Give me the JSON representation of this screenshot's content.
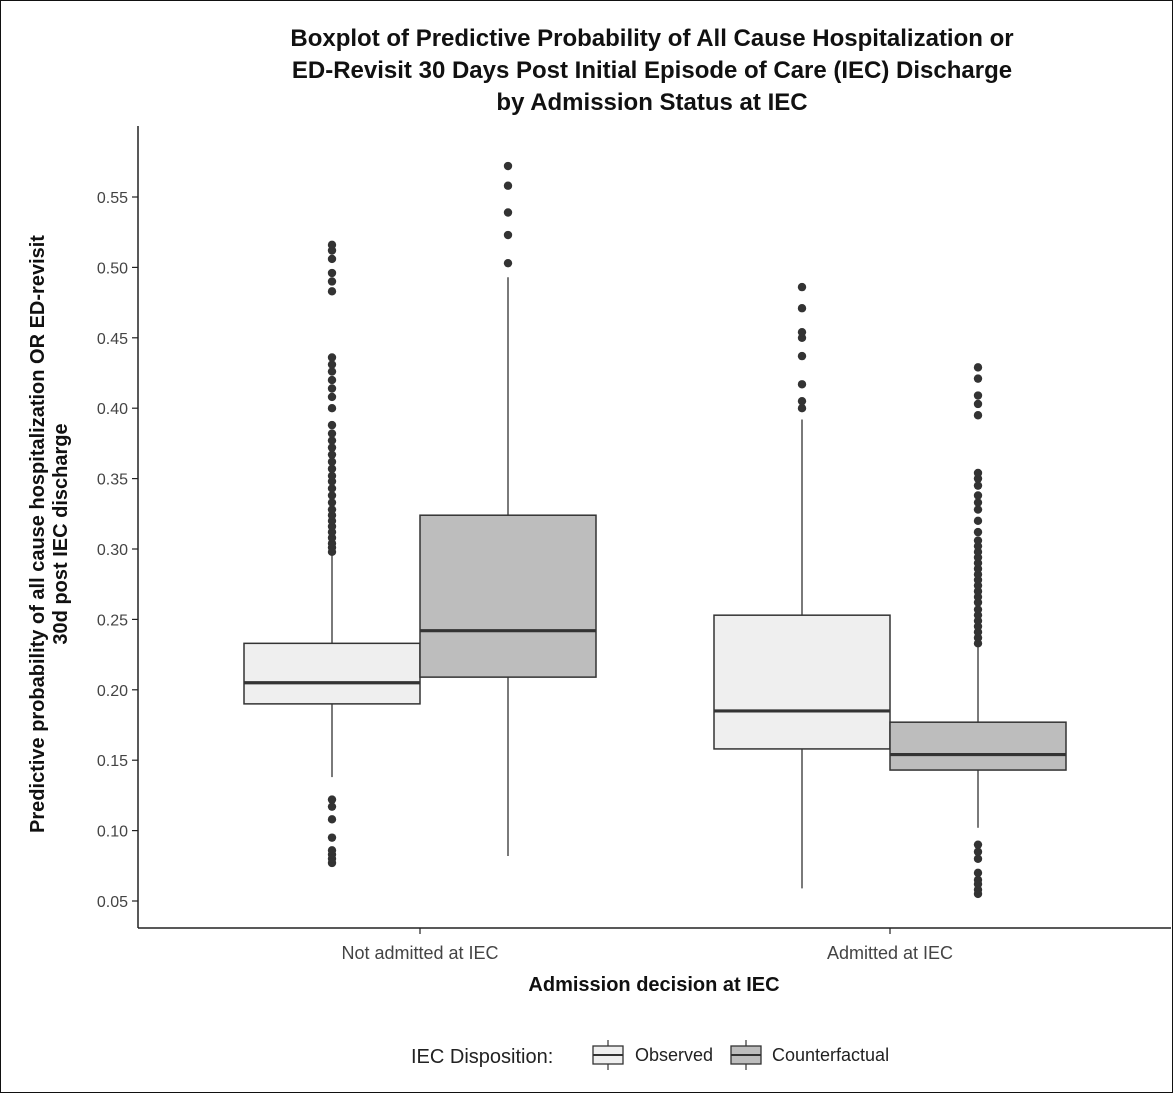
{
  "chart_data": {
    "type": "boxplot",
    "title": [
      "Boxplot of Predictive Probability of All Cause Hospitalization or",
      "ED-Revisit 30 Days Post Initial Episode of Care (IEC) Discharge",
      "by Admission Status at IEC"
    ],
    "xlabel": "Admission decision at IEC",
    "ylabel": [
      "Predictive probability of all cause hospitalization OR ED-revisit",
      "30d post IEC discharge"
    ],
    "ylim": [
      0.03,
      0.58
    ],
    "yticks": [
      0.05,
      0.1,
      0.15,
      0.2,
      0.25,
      0.3,
      0.35,
      0.4,
      0.45,
      0.5,
      0.55
    ],
    "ytick_labels": [
      "0.05",
      "0.10",
      "0.15",
      "0.20",
      "0.25",
      "0.30",
      "0.35",
      "0.40",
      "0.45",
      "0.50",
      "0.55"
    ],
    "categories": [
      "Not admitted at IEC",
      "Admitted at IEC"
    ],
    "legend": {
      "title": "IEC Disposition:",
      "position": "bottom",
      "entries": [
        {
          "name": "Observed",
          "color": "#efefef"
        },
        {
          "name": "Counterfactual",
          "color": "#bdbdbd"
        }
      ]
    },
    "series": [
      {
        "name": "Observed",
        "color": "#efefef",
        "boxes": [
          {
            "category": "Not admitted at IEC",
            "whisker_low": 0.138,
            "q1": 0.19,
            "median": 0.205,
            "q3": 0.233,
            "whisker_high": 0.297,
            "outliers": [
              0.077,
              0.08,
              0.083,
              0.086,
              0.095,
              0.108,
              0.117,
              0.122,
              0.298,
              0.301,
              0.304,
              0.308,
              0.312,
              0.316,
              0.32,
              0.324,
              0.328,
              0.333,
              0.338,
              0.343,
              0.348,
              0.352,
              0.357,
              0.362,
              0.367,
              0.372,
              0.377,
              0.382,
              0.388,
              0.4,
              0.408,
              0.414,
              0.42,
              0.426,
              0.431,
              0.436,
              0.483,
              0.49,
              0.496,
              0.506,
              0.512,
              0.516
            ]
          },
          {
            "category": "Admitted at IEC",
            "whisker_low": 0.059,
            "q1": 0.158,
            "median": 0.185,
            "q3": 0.253,
            "whisker_high": 0.392,
            "outliers": [
              0.4,
              0.405,
              0.417,
              0.437,
              0.45,
              0.454,
              0.471,
              0.486
            ]
          }
        ]
      },
      {
        "name": "Counterfactual",
        "color": "#bdbdbd",
        "boxes": [
          {
            "category": "Not admitted at IEC",
            "whisker_low": 0.082,
            "q1": 0.209,
            "median": 0.242,
            "q3": 0.324,
            "whisker_high": 0.493,
            "outliers": [
              0.503,
              0.523,
              0.539,
              0.558,
              0.572
            ]
          },
          {
            "category": "Admitted at IEC",
            "whisker_low": 0.102,
            "q1": 0.143,
            "median": 0.154,
            "q3": 0.177,
            "whisker_high": 0.231,
            "outliers": [
              0.055,
              0.058,
              0.062,
              0.065,
              0.07,
              0.08,
              0.085,
              0.09,
              0.233,
              0.237,
              0.241,
              0.245,
              0.249,
              0.253,
              0.257,
              0.262,
              0.266,
              0.27,
              0.274,
              0.278,
              0.282,
              0.286,
              0.29,
              0.294,
              0.298,
              0.302,
              0.306,
              0.312,
              0.32,
              0.328,
              0.333,
              0.338,
              0.345,
              0.35,
              0.354,
              0.395,
              0.403,
              0.409,
              0.421,
              0.429
            ]
          }
        ]
      }
    ]
  }
}
